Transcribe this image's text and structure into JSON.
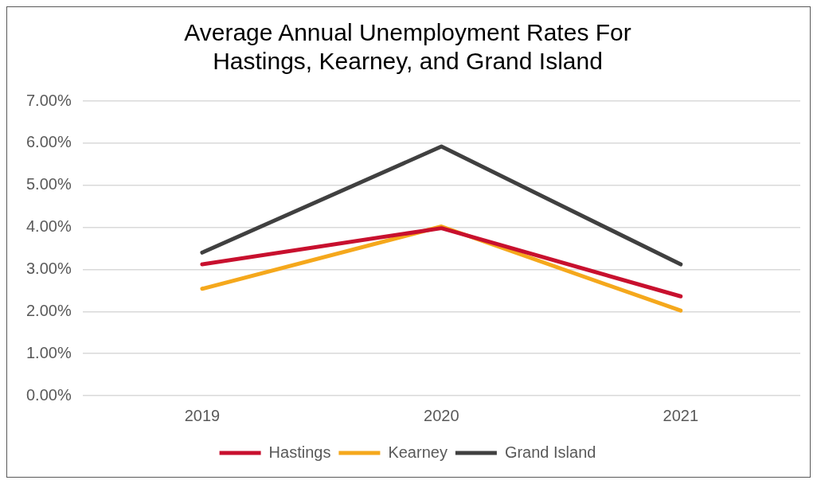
{
  "chart_data": {
    "type": "line",
    "title": "Average Annual Unemployment Rates For\nHastings, Kearney, and Grand Island",
    "categories": [
      "2019",
      "2020",
      "2021"
    ],
    "series": [
      {
        "name": "Hastings",
        "color": "#c8102e",
        "values": [
          3.12,
          3.98,
          2.36
        ]
      },
      {
        "name": "Kearney",
        "color": "#f5a81c",
        "values": [
          2.54,
          4.02,
          2.02
        ]
      },
      {
        "name": "Grand Island",
        "color": "#404040",
        "values": [
          3.4,
          5.92,
          3.12
        ]
      }
    ],
    "ylim": [
      0,
      7
    ],
    "yticks": [
      {
        "value": 0,
        "label": "0.00%"
      },
      {
        "value": 1,
        "label": "1.00%"
      },
      {
        "value": 2,
        "label": "2.00%"
      },
      {
        "value": 3,
        "label": "3.00%"
      },
      {
        "value": 4,
        "label": "4.00%"
      },
      {
        "value": 5,
        "label": "5.00%"
      },
      {
        "value": 6,
        "label": "6.00%"
      },
      {
        "value": 7,
        "label": "7.00%"
      }
    ],
    "grid": "y",
    "legend": "bottom",
    "marker": "none",
    "line_style": "solid"
  }
}
